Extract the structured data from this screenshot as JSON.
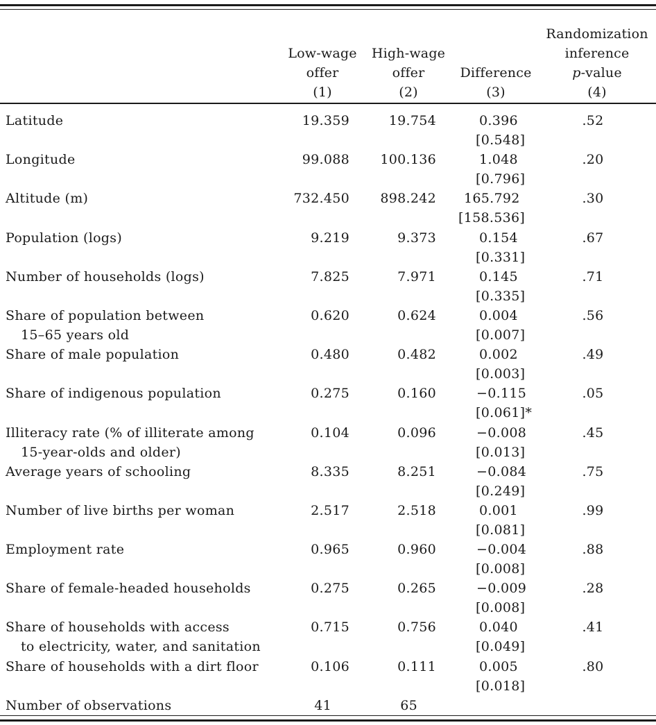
{
  "header": {
    "col1": [
      "Low-wage",
      "offer",
      "(1)"
    ],
    "col2": [
      "High-wage",
      "offer",
      "(2)"
    ],
    "col3": [
      "Difference",
      "(3)"
    ],
    "col4_line1": "Randomization",
    "col4_line2": "inference",
    "col4_p": "p",
    "col4_value": "-value",
    "col4_num": "(4)"
  },
  "rows": [
    {
      "label": "Latitude",
      "label2": "",
      "low": "19.359",
      "high": "19.754",
      "diff": "0.396",
      "se": "[0.548]",
      "p": ".52"
    },
    {
      "label": "Longitude",
      "label2": "",
      "low": "99.088",
      "high": "100.136",
      "diff": "1.048",
      "se": "[0.796]",
      "p": ".20"
    },
    {
      "label": "Altitude (m)",
      "label2": "",
      "low": "732.450",
      "high": "898.242",
      "diff": "165.792",
      "se": "[158.536]",
      "p": ".30"
    },
    {
      "label": "Population (logs)",
      "label2": "",
      "low": "9.219",
      "high": "9.373",
      "diff": "0.154",
      "se": "[0.331]",
      "p": ".67"
    },
    {
      "label": "Number of households (logs)",
      "label2": "",
      "low": "7.825",
      "high": "7.971",
      "diff": "0.145",
      "se": "[0.335]",
      "p": ".71"
    },
    {
      "label": "Share of population between",
      "label2": "15–65 years old",
      "low": "0.620",
      "high": "0.624",
      "diff": "0.004",
      "se": "[0.007]",
      "p": ".56"
    },
    {
      "label": "Share of male population",
      "label2": "",
      "low": "0.480",
      "high": "0.482",
      "diff": "0.002",
      "se": "[0.003]",
      "p": ".49"
    },
    {
      "label": "Share of indigenous population",
      "label2": "",
      "low": "0.275",
      "high": "0.160",
      "diff": "−0.115",
      "se": "[0.061]*",
      "p": ".05"
    },
    {
      "label": "Illiteracy rate (% of illiterate among",
      "label2": "15-year-olds and older)",
      "low": "0.104",
      "high": "0.096",
      "diff": "−0.008",
      "se": "[0.013]",
      "p": ".45"
    },
    {
      "label": "Average years of schooling",
      "label2": "",
      "low": "8.335",
      "high": "8.251",
      "diff": "−0.084",
      "se": "[0.249]",
      "p": ".75"
    },
    {
      "label": "Number of live births per woman",
      "label2": "",
      "low": "2.517",
      "high": "2.518",
      "diff": "0.001",
      "se": "[0.081]",
      "p": ".99"
    },
    {
      "label": "Employment rate",
      "label2": "",
      "low": "0.965",
      "high": "0.960",
      "diff": "−0.004",
      "se": "[0.008]",
      "p": ".88"
    },
    {
      "label": "Share of female-headed households",
      "label2": "",
      "low": "0.275",
      "high": "0.265",
      "diff": "−0.009",
      "se": "[0.008]",
      "p": ".28"
    },
    {
      "label": "Share of households with access",
      "label2": "to electricity, water, and sanitation",
      "low": "0.715",
      "high": "0.756",
      "diff": "0.040",
      "se": "[0.049]",
      "p": ".41"
    },
    {
      "label": "Share of households with a dirt floor",
      "label2": "",
      "low": "0.106",
      "high": "0.111",
      "diff": "0.005",
      "se": "[0.018]",
      "p": ".80"
    }
  ],
  "observations": {
    "label": "Number of observations",
    "low": "41",
    "high": "65"
  }
}
